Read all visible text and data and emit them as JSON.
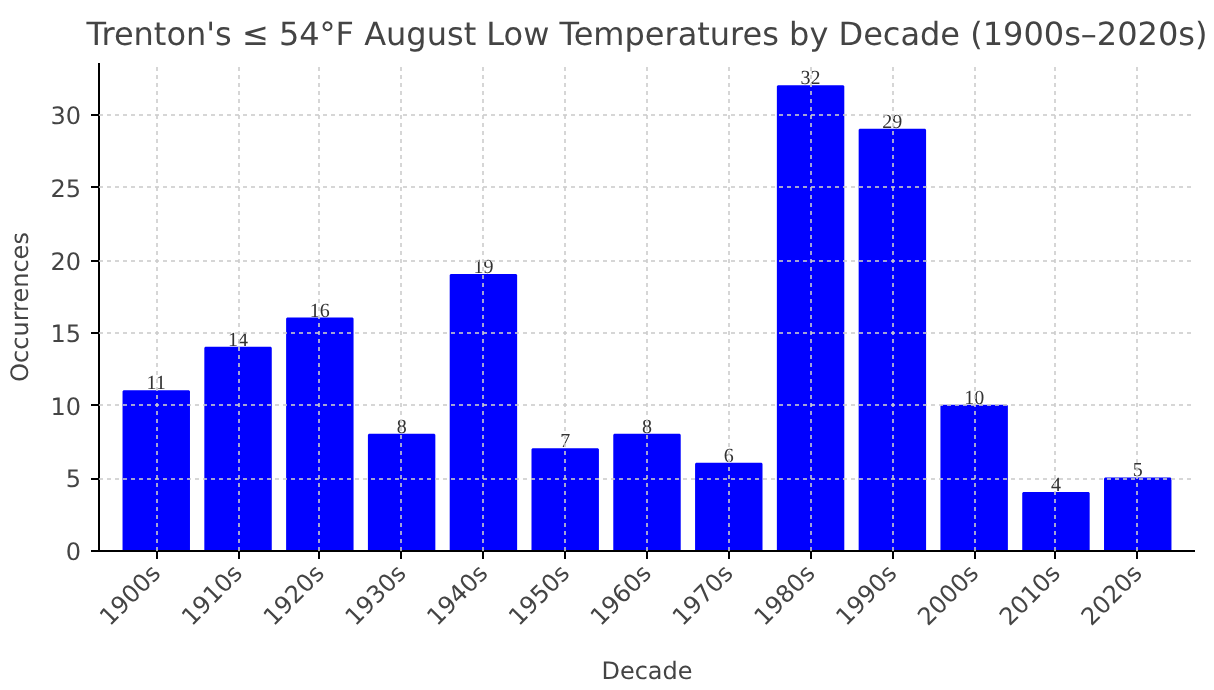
{
  "chart_data": {
    "type": "bar",
    "title": "Trenton's ≤ 54°F August Low Temperatures by Decade (1900s–2020s)",
    "xlabel": "Decade",
    "ylabel": "Occurrences",
    "categories": [
      "1900s",
      "1910s",
      "1920s",
      "1930s",
      "1940s",
      "1950s",
      "1960s",
      "1970s",
      "1980s",
      "1990s",
      "2000s",
      "2010s",
      "2020s"
    ],
    "values": [
      11,
      14,
      16,
      8,
      19,
      7,
      8,
      6,
      32,
      29,
      10,
      4,
      5
    ],
    "color": "#0000ff",
    "ylim": [
      0,
      33.6
    ],
    "yticks": [
      0,
      5,
      10,
      15,
      20,
      25,
      30
    ],
    "grid": true,
    "data_labels": true
  }
}
